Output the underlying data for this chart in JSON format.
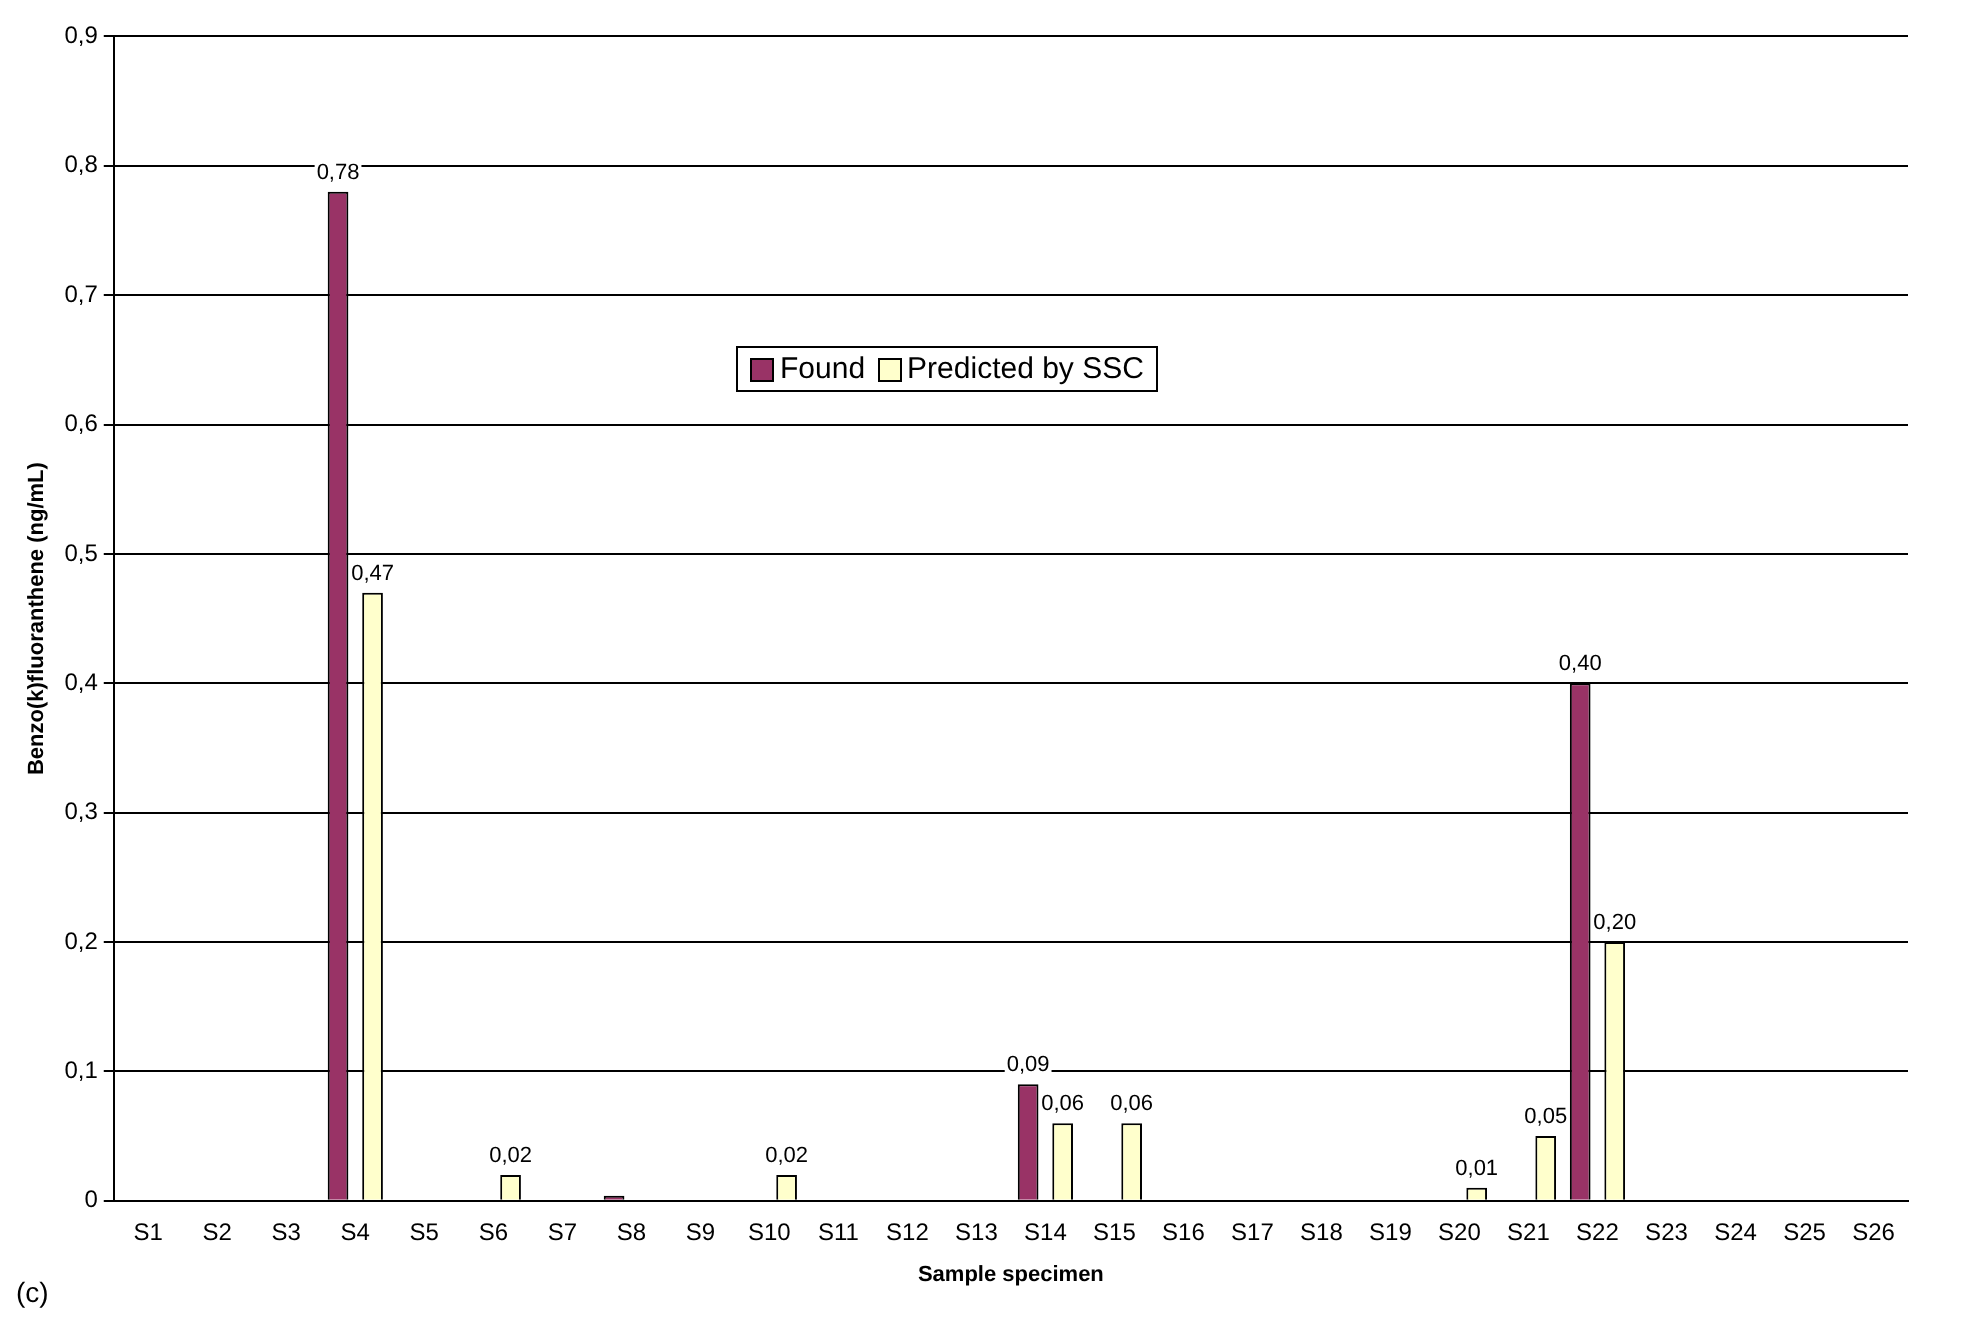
{
  "chart_data": {
    "type": "bar",
    "xlabel": "Sample specimen",
    "ylabel": "Benzo(k)fluoranthene (ng/mL)",
    "categories": [
      "S1",
      "S2",
      "S3",
      "S4",
      "S5",
      "S6",
      "S7",
      "S8",
      "S9",
      "S10",
      "S11",
      "S12",
      "S13",
      "S14",
      "S15",
      "S16",
      "S17",
      "S18",
      "S19",
      "S20",
      "S21",
      "S22",
      "S23",
      "S24",
      "S25",
      "S26"
    ],
    "series": [
      {
        "name": "Found",
        "color": "#993366",
        "values": [
          0,
          0,
          0,
          0.78,
          0,
          0,
          0,
          0.004,
          0,
          0,
          0,
          0,
          0,
          0.09,
          0,
          0,
          0,
          0,
          0,
          0,
          0,
          0.4,
          0,
          0,
          0,
          0
        ],
        "value_labels": [
          null,
          null,
          null,
          "0,78",
          null,
          null,
          null,
          null,
          null,
          null,
          null,
          null,
          null,
          "0,09",
          null,
          null,
          null,
          null,
          null,
          null,
          null,
          "0,40",
          null,
          null,
          null,
          null
        ]
      },
      {
        "name": "Predicted by SSC",
        "color": "#ffffcc",
        "values": [
          0,
          0,
          0,
          0.47,
          0,
          0.02,
          0,
          0,
          0,
          0.02,
          0,
          0,
          0,
          0.06,
          0.06,
          0,
          0,
          0,
          0,
          0.01,
          0.05,
          0.2,
          0,
          0,
          0,
          0
        ],
        "value_labels": [
          null,
          null,
          null,
          "0,47",
          null,
          "0,02",
          null,
          null,
          null,
          "0,02",
          null,
          null,
          null,
          "0,06",
          "0,06",
          null,
          null,
          null,
          null,
          "0,01",
          "0,05",
          "0,20",
          null,
          null,
          null,
          null
        ]
      }
    ],
    "ylim": [
      0,
      0.9
    ],
    "yticks": [
      {
        "value": 0,
        "label": "0"
      },
      {
        "value": 0.1,
        "label": "0,1"
      },
      {
        "value": 0.2,
        "label": "0,2"
      },
      {
        "value": 0.3,
        "label": "0,3"
      },
      {
        "value": 0.4,
        "label": "0,4"
      },
      {
        "value": 0.5,
        "label": "0,5"
      },
      {
        "value": 0.6,
        "label": "0,6"
      },
      {
        "value": 0.7,
        "label": "0,7"
      },
      {
        "value": 0.8,
        "label": "0,8"
      },
      {
        "value": 0.9,
        "label": "0,9"
      }
    ],
    "grid": "y",
    "legend": "top",
    "annotations": [
      "(c)"
    ]
  }
}
